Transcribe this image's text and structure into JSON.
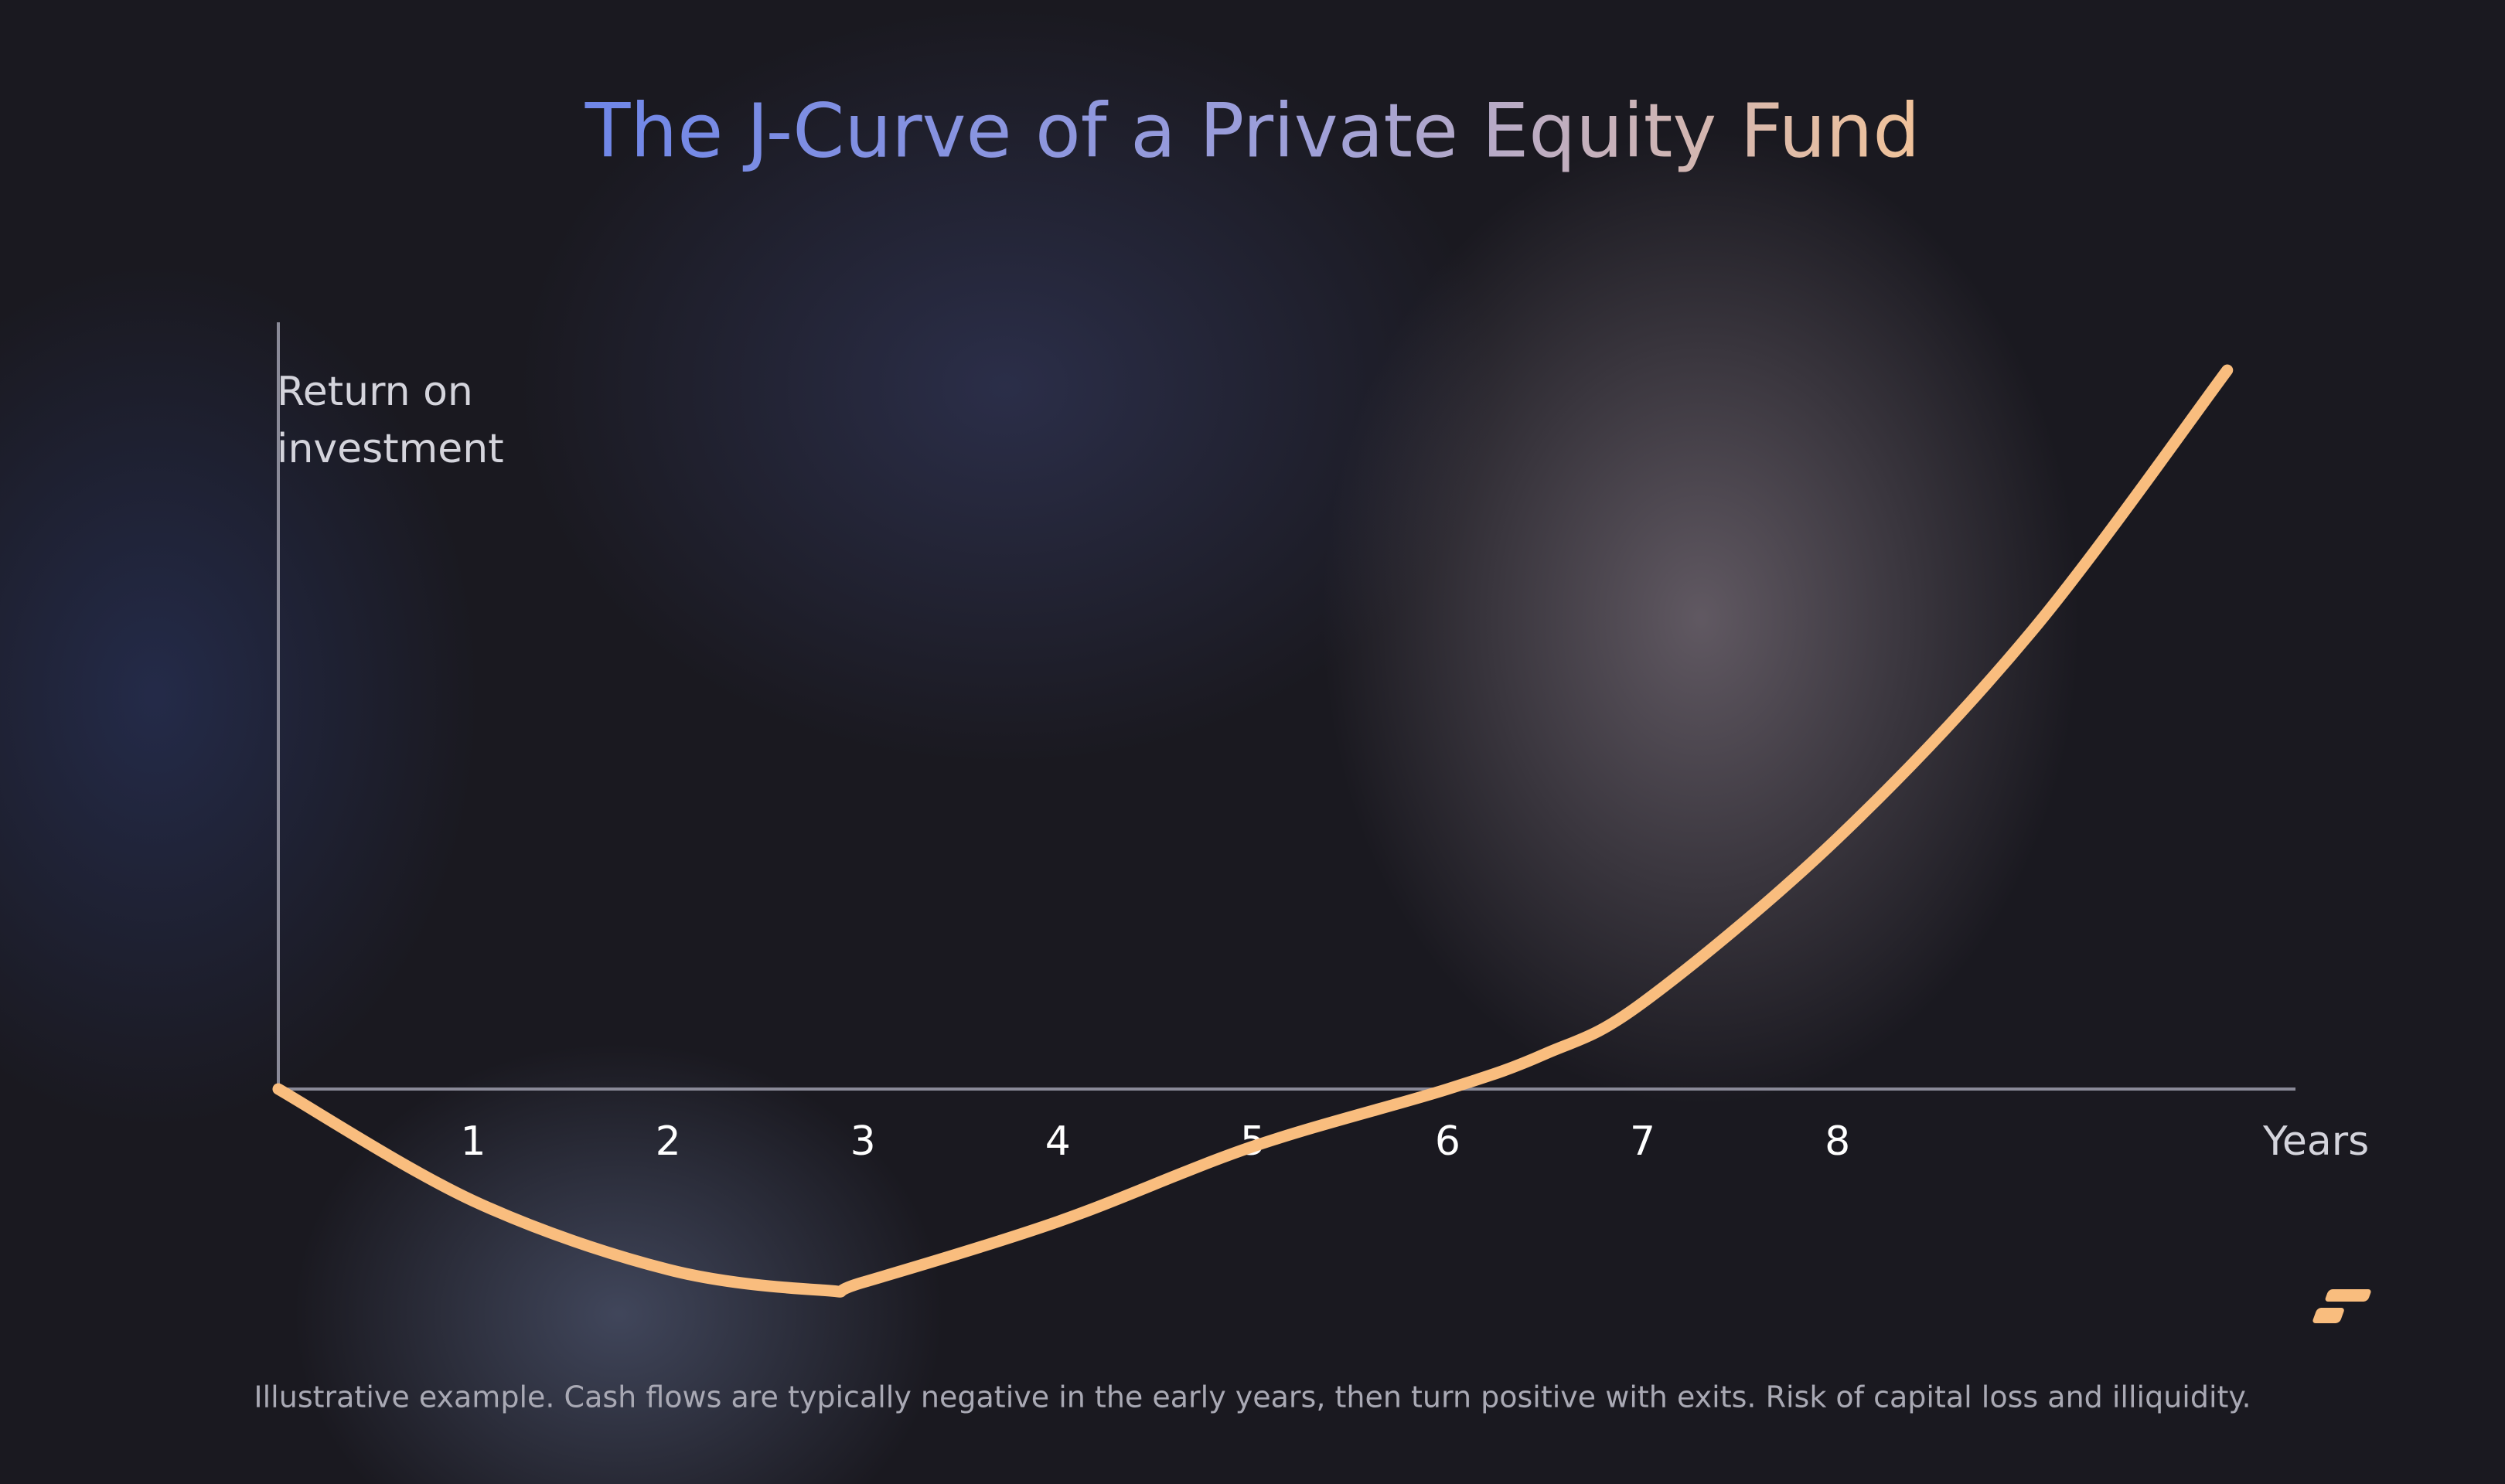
{
  "chart_data": {
    "type": "line",
    "title": "The J-Curve of a Private Equity Fund",
    "y_label": "Return on investment",
    "x_label": "Years",
    "footnote": "Illustrative example. Cash flows are typically negative in the early years, then turn positive with exits. Risk of capital loss and illiquidity.",
    "x": [
      0,
      1,
      2,
      2.8,
      3,
      4,
      5,
      6,
      6.5,
      7,
      8,
      9,
      10
    ],
    "series": [
      {
        "name": "J-Curve",
        "color": "#f9bd7e",
        "values": [
          0,
          -70,
          -113,
          -126,
          -121,
          -83,
          -36,
          0,
          22,
          54,
          157,
          287,
          450
        ]
      }
    ],
    "xlim": [
      0,
      10.35
    ],
    "xticks": [
      1,
      2,
      3,
      4,
      5,
      6,
      7,
      8
    ],
    "ylim": [
      -150,
      480
    ],
    "grid": false
  }
}
